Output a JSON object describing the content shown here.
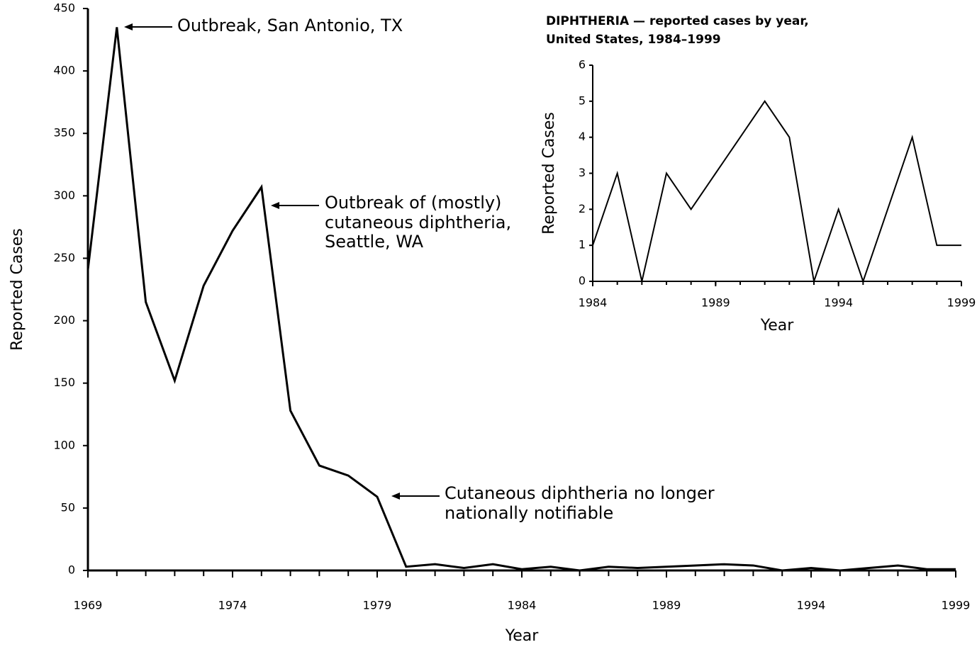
{
  "chart_data": [
    {
      "type": "line",
      "xlabel": "Year",
      "ylabel": "Reported Cases",
      "x": [
        1969,
        1970,
        1971,
        1972,
        1973,
        1974,
        1975,
        1976,
        1977,
        1978,
        1979,
        1980,
        1981,
        1982,
        1983,
        1984,
        1985,
        1986,
        1987,
        1988,
        1989,
        1990,
        1991,
        1992,
        1993,
        1994,
        1995,
        1996,
        1997,
        1998,
        1999
      ],
      "values": [
        241,
        435,
        215,
        152,
        228,
        272,
        307,
        128,
        84,
        76,
        59,
        3,
        5,
        2,
        5,
        1,
        3,
        0,
        3,
        2,
        3,
        4,
        5,
        4,
        0,
        2,
        0,
        2,
        4,
        1,
        1
      ],
      "color": "#000000",
      "xlim": [
        1969,
        1999
      ],
      "xticks": [
        1969,
        1974,
        1979,
        1984,
        1989,
        1994,
        1999
      ],
      "ylim": [
        0,
        450
      ],
      "yticks": [
        0,
        50,
        100,
        150,
        200,
        250,
        300,
        350,
        400,
        450
      ],
      "annotations": [
        [
          "Outbreak, San Antonio, TX"
        ],
        [
          "Outbreak of (mostly)",
          "cutaneous diphtheria,",
          "Seattle, WA"
        ],
        [
          "Cutaneous diphtheria no longer",
          "nationally notifiable"
        ]
      ]
    },
    {
      "type": "line",
      "title": [
        "DIPHTHERIA — reported cases by year,",
        "United States, 1984–1999"
      ],
      "xlabel": "Year",
      "ylabel": "Reported Cases",
      "x": [
        1984,
        1985,
        1986,
        1987,
        1988,
        1989,
        1990,
        1991,
        1992,
        1993,
        1994,
        1995,
        1996,
        1997,
        1998,
        1999
      ],
      "values": [
        1,
        3,
        0,
        3,
        2,
        3,
        4,
        5,
        4,
        0,
        2,
        0,
        2,
        4,
        1,
        1
      ],
      "color": "#000000",
      "xlim": [
        1984,
        1999
      ],
      "xticks": [
        1984,
        1989,
        1994,
        1999
      ],
      "ylim": [
        0,
        6
      ],
      "yticks": [
        0,
        1,
        2,
        3,
        4,
        5,
        6
      ]
    }
  ]
}
